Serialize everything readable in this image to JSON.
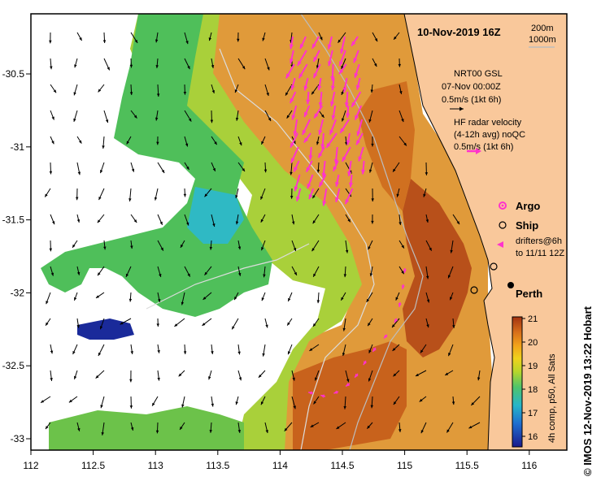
{
  "title": "10-Nov-2019 16Z",
  "isobath_legend": [
    "200m",
    "1000m"
  ],
  "model_legend": {
    "line1": "NRT00 GSL",
    "line2": "07-Nov 00:00Z",
    "scale": "0.5m/s (1kt 6h)"
  },
  "radar_legend": {
    "line1": "HF radar velocity",
    "line2": "(4-12h avg) noQC",
    "scale": "0.5m/s (1kt 6h)"
  },
  "markers": {
    "argo": "Argo",
    "ship": "Ship",
    "drifters_line1": "drifters@6h",
    "drifters_line2": "to 11/11 12Z"
  },
  "city": "Perth",
  "colorbar": {
    "ticks": [
      "21",
      "20",
      "19",
      "18",
      "17",
      "16"
    ],
    "label": "4h comp, p50, All Sats"
  },
  "credit": "© IMOS 12-Nov-2019 13:22 Hobart",
  "axes": {
    "x_ticks": [
      "112",
      "112.5",
      "113",
      "113.5",
      "114",
      "114.5",
      "115",
      "115.5",
      "116"
    ],
    "y_ticks": [
      "-30.5",
      "-31",
      "-31.5",
      "-32",
      "-32.5",
      "-33"
    ]
  },
  "colors": {
    "land": "#f9c89b",
    "frame": "#000000",
    "radar_arrow": "#ff33cc",
    "model_arrow": "#000000",
    "isobath": "#bdbdbd"
  }
}
